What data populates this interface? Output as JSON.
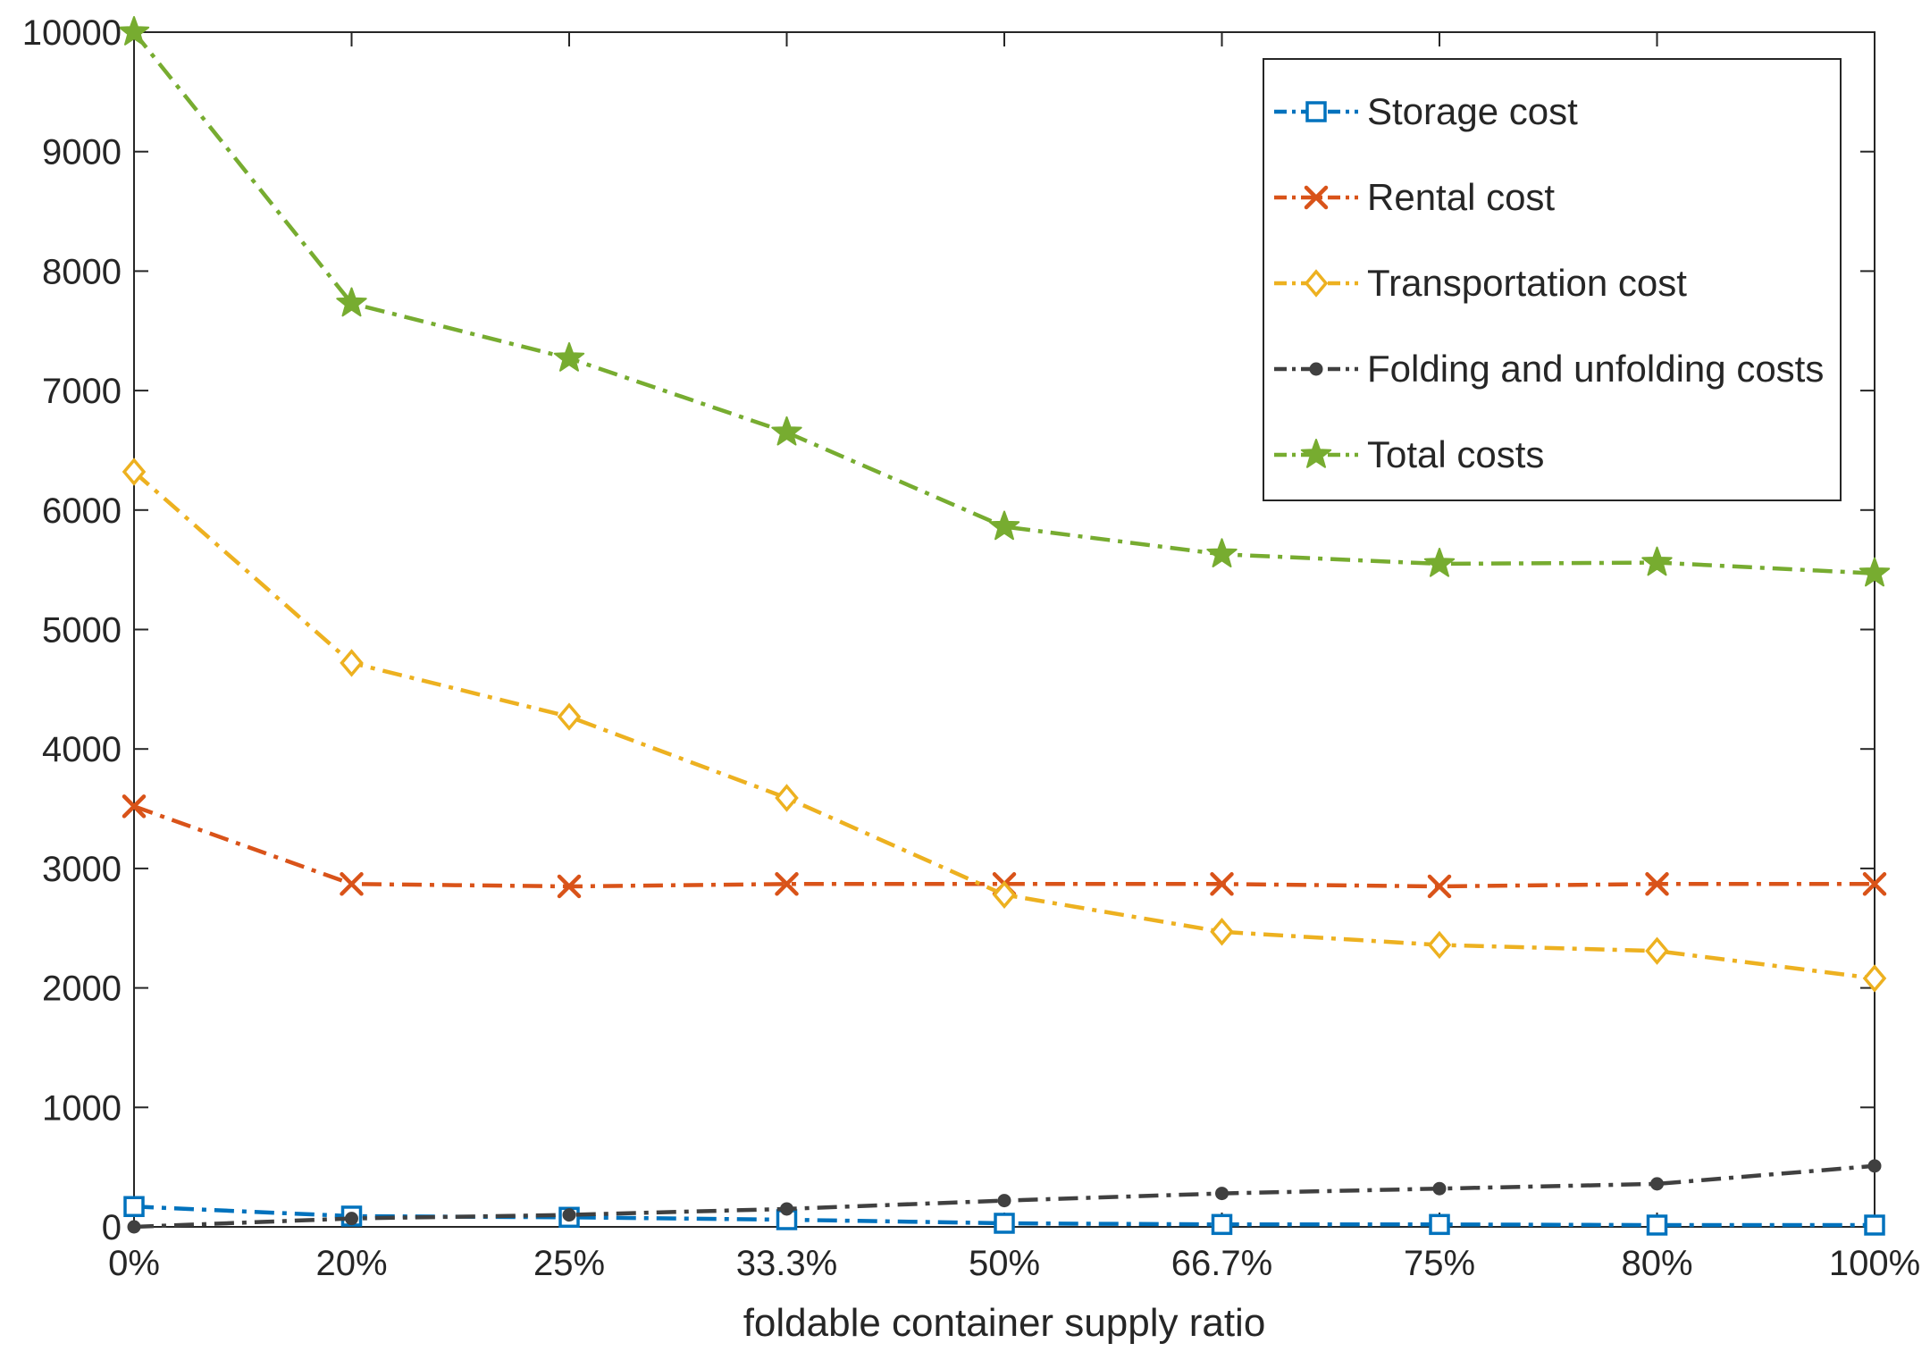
{
  "chart_data": {
    "type": "line",
    "title": "",
    "xlabel": "foldable container supply ratio",
    "ylabel": "",
    "categories": [
      "0%",
      "20%",
      "25%",
      "33.3%",
      "50%",
      "66.7%",
      "75%",
      "80%",
      "100%"
    ],
    "ylim": [
      0,
      10000
    ],
    "yticks": [
      0,
      1000,
      2000,
      3000,
      4000,
      5000,
      6000,
      7000,
      8000,
      9000,
      10000
    ],
    "grid": false,
    "legend_position": "top-right",
    "series": [
      {
        "name": "Storage cost",
        "color": "#0072BD",
        "marker": "square",
        "values": [
          170,
          90,
          80,
          60,
          30,
          20,
          20,
          15,
          15
        ]
      },
      {
        "name": "Rental cost",
        "color": "#D95319",
        "marker": "x",
        "values": [
          3520,
          2870,
          2850,
          2870,
          2870,
          2870,
          2850,
          2870,
          2870
        ]
      },
      {
        "name": "Transportation cost",
        "color": "#EDB120",
        "marker": "diamond",
        "values": [
          6320,
          4720,
          4270,
          3590,
          2780,
          2470,
          2360,
          2310,
          2080
        ]
      },
      {
        "name": "Folding and unfolding costs",
        "color": "#404040",
        "marker": "dot",
        "values": [
          0,
          70,
          100,
          150,
          220,
          280,
          320,
          360,
          510
        ]
      },
      {
        "name": "Total costs",
        "color": "#77AC30",
        "marker": "star",
        "values": [
          10000,
          7730,
          7270,
          6650,
          5860,
          5630,
          5550,
          5560,
          5470
        ]
      }
    ]
  }
}
